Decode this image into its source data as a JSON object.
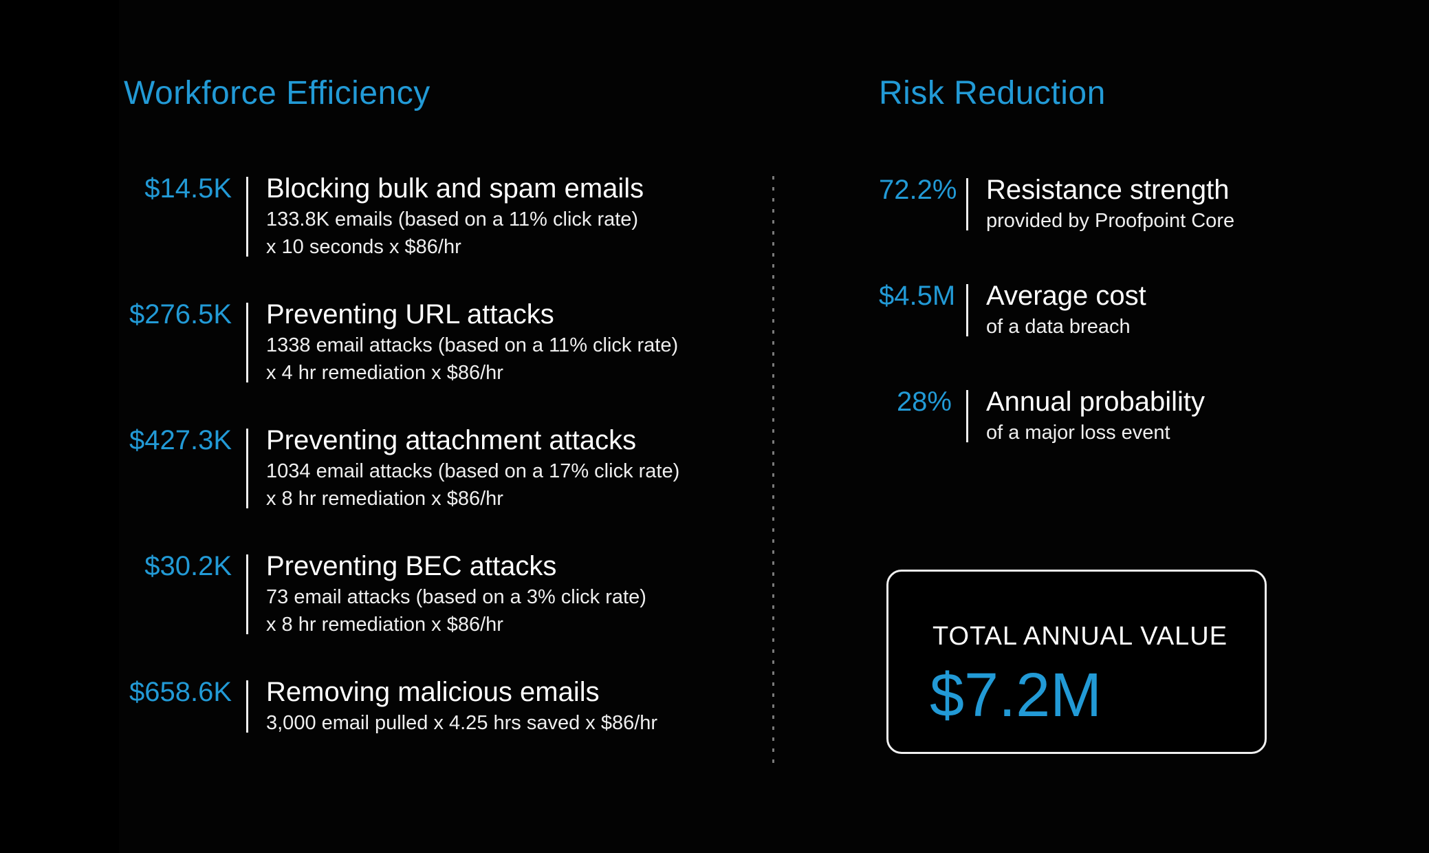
{
  "accent_color": "#229ad6",
  "background_color": "#000000",
  "left_section": {
    "title": "Workforce Efficiency",
    "items": [
      {
        "value": "$14.5K",
        "title": "Blocking bulk and spam emails",
        "details": [
          "133.8K emails (based on a 11% click rate)",
          "x 10 seconds x $86/hr"
        ]
      },
      {
        "value": "$276.5K",
        "title": "Preventing URL attacks",
        "details": [
          "1338 email attacks (based on a 11% click rate)",
          "x 4 hr remediation x $86/hr"
        ]
      },
      {
        "value": "$427.3K",
        "title": "Preventing attachment attacks",
        "details": [
          "1034 email attacks (based on a 17% click rate)",
          "x 8 hr remediation x $86/hr"
        ]
      },
      {
        "value": "$30.2K",
        "title": "Preventing BEC attacks",
        "details": [
          "73 email attacks (based on a 3% click rate)",
          "x 8 hr remediation x $86/hr"
        ]
      },
      {
        "value": "$658.6K",
        "title": "Removing malicious emails",
        "details": [
          "3,000 email pulled x 4.25 hrs saved x $86/hr"
        ]
      }
    ]
  },
  "right_section": {
    "title": "Risk Reduction",
    "items": [
      {
        "value": "72.2%",
        "title": "Resistance strength",
        "details": [
          "provided by Proofpoint Core"
        ]
      },
      {
        "value": "$4.5M",
        "title": "Average cost",
        "details": [
          "of a data breach"
        ]
      },
      {
        "value": "28%",
        "title": "Annual probability",
        "details": [
          "of a major loss event"
        ]
      }
    ],
    "total": {
      "label": "TOTAL ANNUAL VALUE",
      "value": "$7.2M"
    }
  },
  "chart_data": [
    {
      "type": "table",
      "title": "Workforce Efficiency",
      "columns": [
        "annual_value",
        "driver",
        "calculation"
      ],
      "rows": [
        [
          "$14.5K",
          "Blocking bulk and spam emails",
          "133.8K emails (based on a 11% click rate) x 10 seconds x $86/hr"
        ],
        [
          "$276.5K",
          "Preventing URL attacks",
          "1338 email attacks (based on a 11% click rate) x 4 hr remediation x $86/hr"
        ],
        [
          "$427.3K",
          "Preventing attachment attacks",
          "1034 email attacks (based on a 17% click rate) x 8 hr remediation x $86/hr"
        ],
        [
          "$30.2K",
          "Preventing BEC attacks",
          "73 email attacks (based on a 3% click rate) x 8 hr remediation x $86/hr"
        ],
        [
          "$658.6K",
          "Removing malicious emails",
          "3,000 email pulled x 4.25 hrs saved x $86/hr"
        ]
      ]
    },
    {
      "type": "table",
      "title": "Risk Reduction",
      "columns": [
        "value",
        "metric",
        "detail"
      ],
      "rows": [
        [
          "72.2%",
          "Resistance strength",
          "provided by Proofpoint Core"
        ],
        [
          "$4.5M",
          "Average cost",
          "of a data breach"
        ],
        [
          "28%",
          "Annual probability",
          "of a major loss event"
        ]
      ],
      "total": {
        "label": "TOTAL ANNUAL VALUE",
        "value": "$7.2M"
      }
    }
  ]
}
